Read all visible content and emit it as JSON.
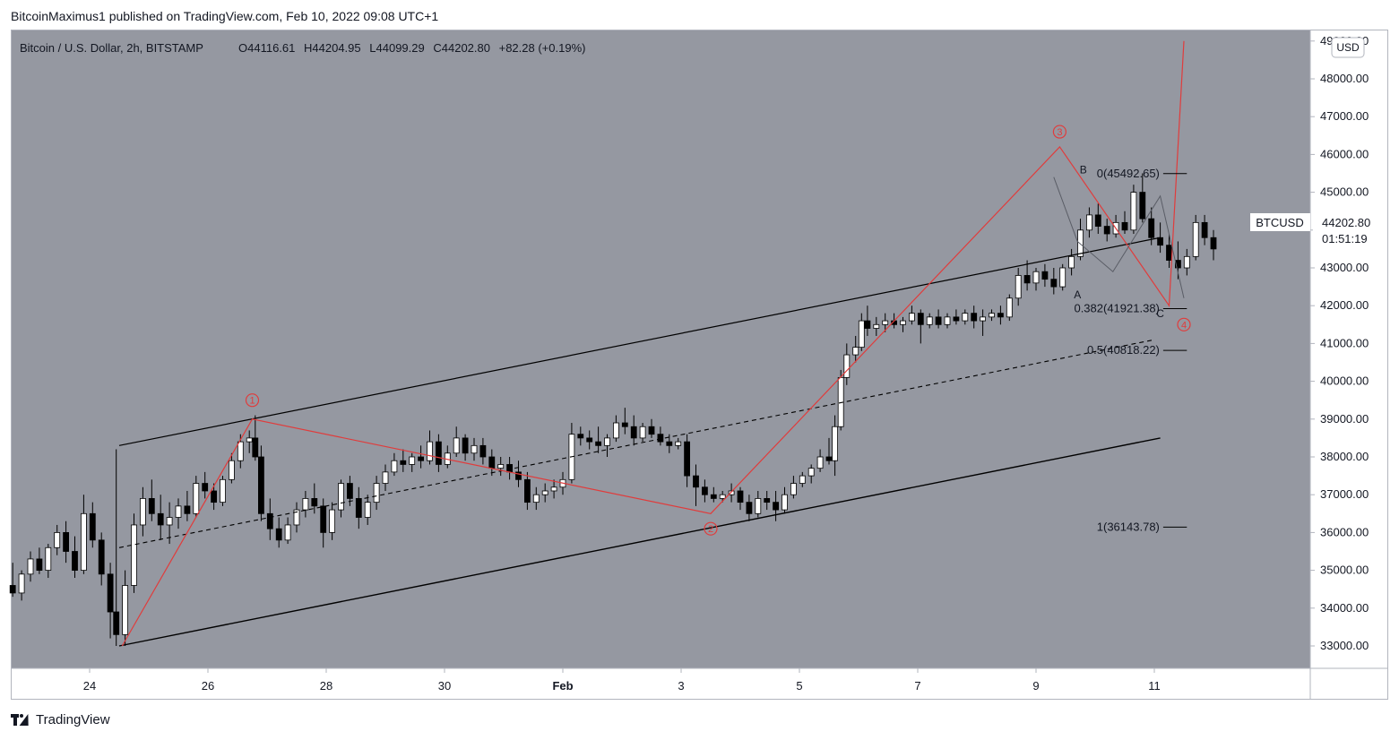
{
  "header": {
    "published": "BitcoinMaximus1 published on TradingView.com, Feb 10, 2022 09:08 UTC+1"
  },
  "footer": {
    "brand": "TradingView"
  },
  "colors": {
    "background": "#9598a1",
    "up": "#ffffff",
    "down": "#000000",
    "wave": "#e03c3c",
    "price_box_bg": "#ffffff"
  },
  "legend": {
    "symbol": "Bitcoin / U.S. Dollar, 2h, BITSTAMP",
    "o_label": "O",
    "o_value": "44116.61",
    "h_label": "H",
    "h_value": "44204.95",
    "l_label": "L",
    "l_value": "44099.29",
    "c_label": "C",
    "c_value": "44202.80",
    "change": "+82.28 (+0.19%)"
  },
  "price_box": {
    "ticker": "BTCUSD",
    "price": "44202.80",
    "countdown": "01:51:19",
    "currency": "USD"
  },
  "chart_data": {
    "type": "candlestick",
    "title": "Bitcoin / U.S. Dollar, 2h, BITSTAMP",
    "xlabel": "",
    "ylabel": "",
    "ylim": [
      32400,
      49200
    ],
    "y_ticks": [
      "33000.00",
      "34000.00",
      "35000.00",
      "36000.00",
      "37000.00",
      "38000.00",
      "39000.00",
      "40000.00",
      "41000.00",
      "42000.00",
      "43000.00",
      "44000.00",
      "45000.00",
      "46000.00",
      "47000.00",
      "48000.00",
      "49000.00"
    ],
    "x_ticks": [
      "24",
      "26",
      "28",
      "30",
      "Feb",
      "3",
      "5",
      "7",
      "9",
      "11"
    ],
    "x_tick_days": [
      0,
      2,
      4,
      6,
      8,
      10,
      12,
      14,
      16,
      18
    ],
    "x_range_days": [
      -1.35,
      19.55
    ],
    "candles": [
      {
        "t": -1.3,
        "o": 34600,
        "h": 35200,
        "l": 34300,
        "c": 34400
      },
      {
        "t": -1.15,
        "o": 34400,
        "h": 35000,
        "l": 34200,
        "c": 34900
      },
      {
        "t": -1.0,
        "o": 34900,
        "h": 35500,
        "l": 34700,
        "c": 35300
      },
      {
        "t": -0.85,
        "o": 35300,
        "h": 35600,
        "l": 34900,
        "c": 35000
      },
      {
        "t": -0.7,
        "o": 35000,
        "h": 35700,
        "l": 34800,
        "c": 35600
      },
      {
        "t": -0.55,
        "o": 35600,
        "h": 36200,
        "l": 35400,
        "c": 36000
      },
      {
        "t": -0.4,
        "o": 36000,
        "h": 36300,
        "l": 35200,
        "c": 35500
      },
      {
        "t": -0.25,
        "o": 35500,
        "h": 35900,
        "l": 34800,
        "c": 35000
      },
      {
        "t": -0.1,
        "o": 35000,
        "h": 37000,
        "l": 34900,
        "c": 36500
      },
      {
        "t": 0.05,
        "o": 36500,
        "h": 36800,
        "l": 35600,
        "c": 35800
      },
      {
        "t": 0.2,
        "o": 35800,
        "h": 36000,
        "l": 34600,
        "c": 34900
      },
      {
        "t": 0.35,
        "o": 34900,
        "h": 35200,
        "l": 33200,
        "c": 33900
      },
      {
        "t": 0.45,
        "o": 33900,
        "h": 38200,
        "l": 33000,
        "c": 33300
      },
      {
        "t": 0.6,
        "o": 33300,
        "h": 35000,
        "l": 33000,
        "c": 34600
      },
      {
        "t": 0.75,
        "o": 34600,
        "h": 36500,
        "l": 34400,
        "c": 36200
      },
      {
        "t": 0.9,
        "o": 36200,
        "h": 37200,
        "l": 35900,
        "c": 36900
      },
      {
        "t": 1.05,
        "o": 36900,
        "h": 37400,
        "l": 36300,
        "c": 36500
      },
      {
        "t": 1.2,
        "o": 36500,
        "h": 37000,
        "l": 35800,
        "c": 36200
      },
      {
        "t": 1.35,
        "o": 36200,
        "h": 36800,
        "l": 35700,
        "c": 36400
      },
      {
        "t": 1.5,
        "o": 36400,
        "h": 36900,
        "l": 36100,
        "c": 36700
      },
      {
        "t": 1.65,
        "o": 36700,
        "h": 37100,
        "l": 36300,
        "c": 36500
      },
      {
        "t": 1.8,
        "o": 36500,
        "h": 37500,
        "l": 36400,
        "c": 37300
      },
      {
        "t": 1.95,
        "o": 37300,
        "h": 37600,
        "l": 36900,
        "c": 37100
      },
      {
        "t": 2.1,
        "o": 37100,
        "h": 37300,
        "l": 36600,
        "c": 36800
      },
      {
        "t": 2.25,
        "o": 36800,
        "h": 37500,
        "l": 36700,
        "c": 37400
      },
      {
        "t": 2.4,
        "o": 37400,
        "h": 38100,
        "l": 37300,
        "c": 37900
      },
      {
        "t": 2.55,
        "o": 37900,
        "h": 38600,
        "l": 37700,
        "c": 38400
      },
      {
        "t": 2.7,
        "o": 38400,
        "h": 38700,
        "l": 38100,
        "c": 38500
      },
      {
        "t": 2.8,
        "o": 38500,
        "h": 39100,
        "l": 37900,
        "c": 38000
      },
      {
        "t": 2.9,
        "o": 38000,
        "h": 38300,
        "l": 36300,
        "c": 36500
      },
      {
        "t": 3.05,
        "o": 36500,
        "h": 36900,
        "l": 35800,
        "c": 36100
      },
      {
        "t": 3.2,
        "o": 36100,
        "h": 36400,
        "l": 35600,
        "c": 35800
      },
      {
        "t": 3.35,
        "o": 35800,
        "h": 36400,
        "l": 35700,
        "c": 36200
      },
      {
        "t": 3.5,
        "o": 36200,
        "h": 36800,
        "l": 36000,
        "c": 36600
      },
      {
        "t": 3.65,
        "o": 36600,
        "h": 37100,
        "l": 36400,
        "c": 36900
      },
      {
        "t": 3.8,
        "o": 36900,
        "h": 37300,
        "l": 36500,
        "c": 36700
      },
      {
        "t": 3.95,
        "o": 36700,
        "h": 36900,
        "l": 35600,
        "c": 36000
      },
      {
        "t": 4.1,
        "o": 36000,
        "h": 36800,
        "l": 35800,
        "c": 36600
      },
      {
        "t": 4.25,
        "o": 36600,
        "h": 37400,
        "l": 36400,
        "c": 37300
      },
      {
        "t": 4.4,
        "o": 37300,
        "h": 37500,
        "l": 36700,
        "c": 36900
      },
      {
        "t": 4.55,
        "o": 36900,
        "h": 37200,
        "l": 36100,
        "c": 36400
      },
      {
        "t": 4.7,
        "o": 36400,
        "h": 37000,
        "l": 36200,
        "c": 36800
      },
      {
        "t": 4.85,
        "o": 36800,
        "h": 37500,
        "l": 36600,
        "c": 37300
      },
      {
        "t": 5.0,
        "o": 37300,
        "h": 37800,
        "l": 37100,
        "c": 37600
      },
      {
        "t": 5.15,
        "o": 37600,
        "h": 38100,
        "l": 37500,
        "c": 37900
      },
      {
        "t": 5.3,
        "o": 37900,
        "h": 38200,
        "l": 37600,
        "c": 37800
      },
      {
        "t": 5.45,
        "o": 37800,
        "h": 38100,
        "l": 37600,
        "c": 38000
      },
      {
        "t": 5.6,
        "o": 38000,
        "h": 38300,
        "l": 37700,
        "c": 37900
      },
      {
        "t": 5.75,
        "o": 37900,
        "h": 38700,
        "l": 37800,
        "c": 38400
      },
      {
        "t": 5.9,
        "o": 38400,
        "h": 38600,
        "l": 37600,
        "c": 37800
      },
      {
        "t": 6.05,
        "o": 37800,
        "h": 38300,
        "l": 37700,
        "c": 38100
      },
      {
        "t": 6.2,
        "o": 38100,
        "h": 38800,
        "l": 38000,
        "c": 38500
      },
      {
        "t": 6.35,
        "o": 38500,
        "h": 38600,
        "l": 37900,
        "c": 38100
      },
      {
        "t": 6.5,
        "o": 38100,
        "h": 38500,
        "l": 37900,
        "c": 38300
      },
      {
        "t": 6.65,
        "o": 38300,
        "h": 38500,
        "l": 37800,
        "c": 38000
      },
      {
        "t": 6.8,
        "o": 38000,
        "h": 38200,
        "l": 37500,
        "c": 37700
      },
      {
        "t": 6.95,
        "o": 37700,
        "h": 38000,
        "l": 37500,
        "c": 37800
      },
      {
        "t": 7.1,
        "o": 37800,
        "h": 38000,
        "l": 37400,
        "c": 37600
      },
      {
        "t": 7.25,
        "o": 37600,
        "h": 37900,
        "l": 37200,
        "c": 37400
      },
      {
        "t": 7.4,
        "o": 37400,
        "h": 37600,
        "l": 36600,
        "c": 36800
      },
      {
        "t": 7.55,
        "o": 36800,
        "h": 37200,
        "l": 36600,
        "c": 37000
      },
      {
        "t": 7.7,
        "o": 37000,
        "h": 37300,
        "l": 36800,
        "c": 37100
      },
      {
        "t": 7.85,
        "o": 37100,
        "h": 37400,
        "l": 36900,
        "c": 37200
      },
      {
        "t": 8.0,
        "o": 37200,
        "h": 37600,
        "l": 37000,
        "c": 37400
      },
      {
        "t": 8.15,
        "o": 37400,
        "h": 38900,
        "l": 37300,
        "c": 38600
      },
      {
        "t": 8.3,
        "o": 38600,
        "h": 38800,
        "l": 38300,
        "c": 38500
      },
      {
        "t": 8.45,
        "o": 38500,
        "h": 38700,
        "l": 38200,
        "c": 38400
      },
      {
        "t": 8.6,
        "o": 38400,
        "h": 38800,
        "l": 38100,
        "c": 38300
      },
      {
        "t": 8.75,
        "o": 38300,
        "h": 38600,
        "l": 38000,
        "c": 38500
      },
      {
        "t": 8.9,
        "o": 38500,
        "h": 39100,
        "l": 38400,
        "c": 38900
      },
      {
        "t": 9.05,
        "o": 38900,
        "h": 39300,
        "l": 38600,
        "c": 38800
      },
      {
        "t": 9.2,
        "o": 38800,
        "h": 39100,
        "l": 38300,
        "c": 38500
      },
      {
        "t": 9.35,
        "o": 38500,
        "h": 38900,
        "l": 38400,
        "c": 38800
      },
      {
        "t": 9.5,
        "o": 38800,
        "h": 39000,
        "l": 38500,
        "c": 38600
      },
      {
        "t": 9.65,
        "o": 38600,
        "h": 38800,
        "l": 38300,
        "c": 38400
      },
      {
        "t": 9.8,
        "o": 38400,
        "h": 38600,
        "l": 38100,
        "c": 38300
      },
      {
        "t": 9.95,
        "o": 38300,
        "h": 38500,
        "l": 38200,
        "c": 38400
      },
      {
        "t": 10.1,
        "o": 38400,
        "h": 38600,
        "l": 37200,
        "c": 37500
      },
      {
        "t": 10.25,
        "o": 37500,
        "h": 37800,
        "l": 36700,
        "c": 37200
      },
      {
        "t": 10.4,
        "o": 37200,
        "h": 37400,
        "l": 36800,
        "c": 37000
      },
      {
        "t": 10.55,
        "o": 37000,
        "h": 37200,
        "l": 36800,
        "c": 36900
      },
      {
        "t": 10.7,
        "o": 36900,
        "h": 37100,
        "l": 36800,
        "c": 37000
      },
      {
        "t": 10.85,
        "o": 37000,
        "h": 37300,
        "l": 36800,
        "c": 37100
      },
      {
        "t": 11.0,
        "o": 37100,
        "h": 37200,
        "l": 36600,
        "c": 36800
      },
      {
        "t": 11.15,
        "o": 36800,
        "h": 37000,
        "l": 36300,
        "c": 36500
      },
      {
        "t": 11.3,
        "o": 36500,
        "h": 37100,
        "l": 36400,
        "c": 36900
      },
      {
        "t": 11.45,
        "o": 36900,
        "h": 37100,
        "l": 36600,
        "c": 36800
      },
      {
        "t": 11.6,
        "o": 36800,
        "h": 37100,
        "l": 36300,
        "c": 36600
      },
      {
        "t": 11.75,
        "o": 36600,
        "h": 37200,
        "l": 36500,
        "c": 37000
      },
      {
        "t": 11.9,
        "o": 37000,
        "h": 37500,
        "l": 36900,
        "c": 37300
      },
      {
        "t": 12.05,
        "o": 37300,
        "h": 37600,
        "l": 37200,
        "c": 37500
      },
      {
        "t": 12.2,
        "o": 37500,
        "h": 37800,
        "l": 37300,
        "c": 37700
      },
      {
        "t": 12.35,
        "o": 37700,
        "h": 38200,
        "l": 37600,
        "c": 38000
      },
      {
        "t": 12.5,
        "o": 38000,
        "h": 38500,
        "l": 37800,
        "c": 37900
      },
      {
        "t": 12.6,
        "o": 37900,
        "h": 39100,
        "l": 37500,
        "c": 38800
      },
      {
        "t": 12.7,
        "o": 38800,
        "h": 40300,
        "l": 38700,
        "c": 40100
      },
      {
        "t": 12.8,
        "o": 40100,
        "h": 41000,
        "l": 39900,
        "c": 40700
      },
      {
        "t": 12.95,
        "o": 40700,
        "h": 41200,
        "l": 40500,
        "c": 40900
      },
      {
        "t": 13.05,
        "o": 40900,
        "h": 41800,
        "l": 40800,
        "c": 41600
      },
      {
        "t": 13.15,
        "o": 41600,
        "h": 42000,
        "l": 41200,
        "c": 41400
      },
      {
        "t": 13.3,
        "o": 41400,
        "h": 41700,
        "l": 41200,
        "c": 41500
      },
      {
        "t": 13.45,
        "o": 41500,
        "h": 41800,
        "l": 41300,
        "c": 41600
      },
      {
        "t": 13.6,
        "o": 41600,
        "h": 41800,
        "l": 41400,
        "c": 41500
      },
      {
        "t": 13.75,
        "o": 41500,
        "h": 41700,
        "l": 41300,
        "c": 41600
      },
      {
        "t": 13.9,
        "o": 41600,
        "h": 42000,
        "l": 41500,
        "c": 41800
      },
      {
        "t": 14.05,
        "o": 41800,
        "h": 41900,
        "l": 41000,
        "c": 41500
      },
      {
        "t": 14.2,
        "o": 41500,
        "h": 41800,
        "l": 41400,
        "c": 41700
      },
      {
        "t": 14.35,
        "o": 41700,
        "h": 41900,
        "l": 41400,
        "c": 41500
      },
      {
        "t": 14.5,
        "o": 41500,
        "h": 41800,
        "l": 41400,
        "c": 41700
      },
      {
        "t": 14.65,
        "o": 41700,
        "h": 41900,
        "l": 41500,
        "c": 41600
      },
      {
        "t": 14.8,
        "o": 41600,
        "h": 41900,
        "l": 41500,
        "c": 41800
      },
      {
        "t": 14.95,
        "o": 41800,
        "h": 42000,
        "l": 41400,
        "c": 41600
      },
      {
        "t": 15.1,
        "o": 41600,
        "h": 41900,
        "l": 41200,
        "c": 41700
      },
      {
        "t": 15.25,
        "o": 41700,
        "h": 41900,
        "l": 41600,
        "c": 41800
      },
      {
        "t": 15.4,
        "o": 41800,
        "h": 42000,
        "l": 41500,
        "c": 41700
      },
      {
        "t": 15.55,
        "o": 41700,
        "h": 42300,
        "l": 41600,
        "c": 42200
      },
      {
        "t": 15.7,
        "o": 42200,
        "h": 43000,
        "l": 42000,
        "c": 42800
      },
      {
        "t": 15.85,
        "o": 42800,
        "h": 43200,
        "l": 42400,
        "c": 42600
      },
      {
        "t": 16.0,
        "o": 42600,
        "h": 43000,
        "l": 42400,
        "c": 42900
      },
      {
        "t": 16.15,
        "o": 42900,
        "h": 43100,
        "l": 42500,
        "c": 42700
      },
      {
        "t": 16.3,
        "o": 42700,
        "h": 43000,
        "l": 42300,
        "c": 42500
      },
      {
        "t": 16.45,
        "o": 42500,
        "h": 43100,
        "l": 42400,
        "c": 43000
      },
      {
        "t": 16.6,
        "o": 43000,
        "h": 43500,
        "l": 42800,
        "c": 43300
      },
      {
        "t": 16.75,
        "o": 43300,
        "h": 44300,
        "l": 43200,
        "c": 44000
      },
      {
        "t": 16.9,
        "o": 44000,
        "h": 44600,
        "l": 43800,
        "c": 44400
      },
      {
        "t": 17.05,
        "o": 44400,
        "h": 44700,
        "l": 43900,
        "c": 44100
      },
      {
        "t": 17.2,
        "o": 44100,
        "h": 44300,
        "l": 43700,
        "c": 43900
      },
      {
        "t": 17.35,
        "o": 43900,
        "h": 44400,
        "l": 43800,
        "c": 44200
      },
      {
        "t": 17.5,
        "o": 44200,
        "h": 44500,
        "l": 43900,
        "c": 44000
      },
      {
        "t": 17.65,
        "o": 44000,
        "h": 45200,
        "l": 43900,
        "c": 45000
      },
      {
        "t": 17.8,
        "o": 45000,
        "h": 45500,
        "l": 44200,
        "c": 44300
      },
      {
        "t": 17.95,
        "o": 44300,
        "h": 44600,
        "l": 43600,
        "c": 43800
      },
      {
        "t": 18.1,
        "o": 43800,
        "h": 44200,
        "l": 43400,
        "c": 43600
      },
      {
        "t": 18.25,
        "o": 43600,
        "h": 43900,
        "l": 43000,
        "c": 43200
      },
      {
        "t": 18.4,
        "o": 43200,
        "h": 43700,
        "l": 42700,
        "c": 43000
      },
      {
        "t": 18.55,
        "o": 43000,
        "h": 43500,
        "l": 42800,
        "c": 43300
      },
      {
        "t": 18.7,
        "o": 43300,
        "h": 44400,
        "l": 43200,
        "c": 44200
      },
      {
        "t": 18.85,
        "o": 44200,
        "h": 44400,
        "l": 43600,
        "c": 43800
      },
      {
        "t": 19.0,
        "o": 43800,
        "h": 44000,
        "l": 43200,
        "c": 43500
      }
    ],
    "wave_labels": [
      "1",
      "2",
      "3",
      "4"
    ],
    "corrective_labels": [
      "A",
      "B",
      "C"
    ],
    "fib_levels": [
      {
        "ratio": "0",
        "price": 45492.65,
        "label": "0(45492.65)"
      },
      {
        "ratio": "0.382",
        "price": 41921.38,
        "label": "0.382(41921.38)"
      },
      {
        "ratio": "0.5",
        "price": 40818.22,
        "label": "0.5(40818.22)"
      },
      {
        "ratio": "1",
        "price": 36143.78,
        "label": "1(36143.78)"
      }
    ]
  }
}
